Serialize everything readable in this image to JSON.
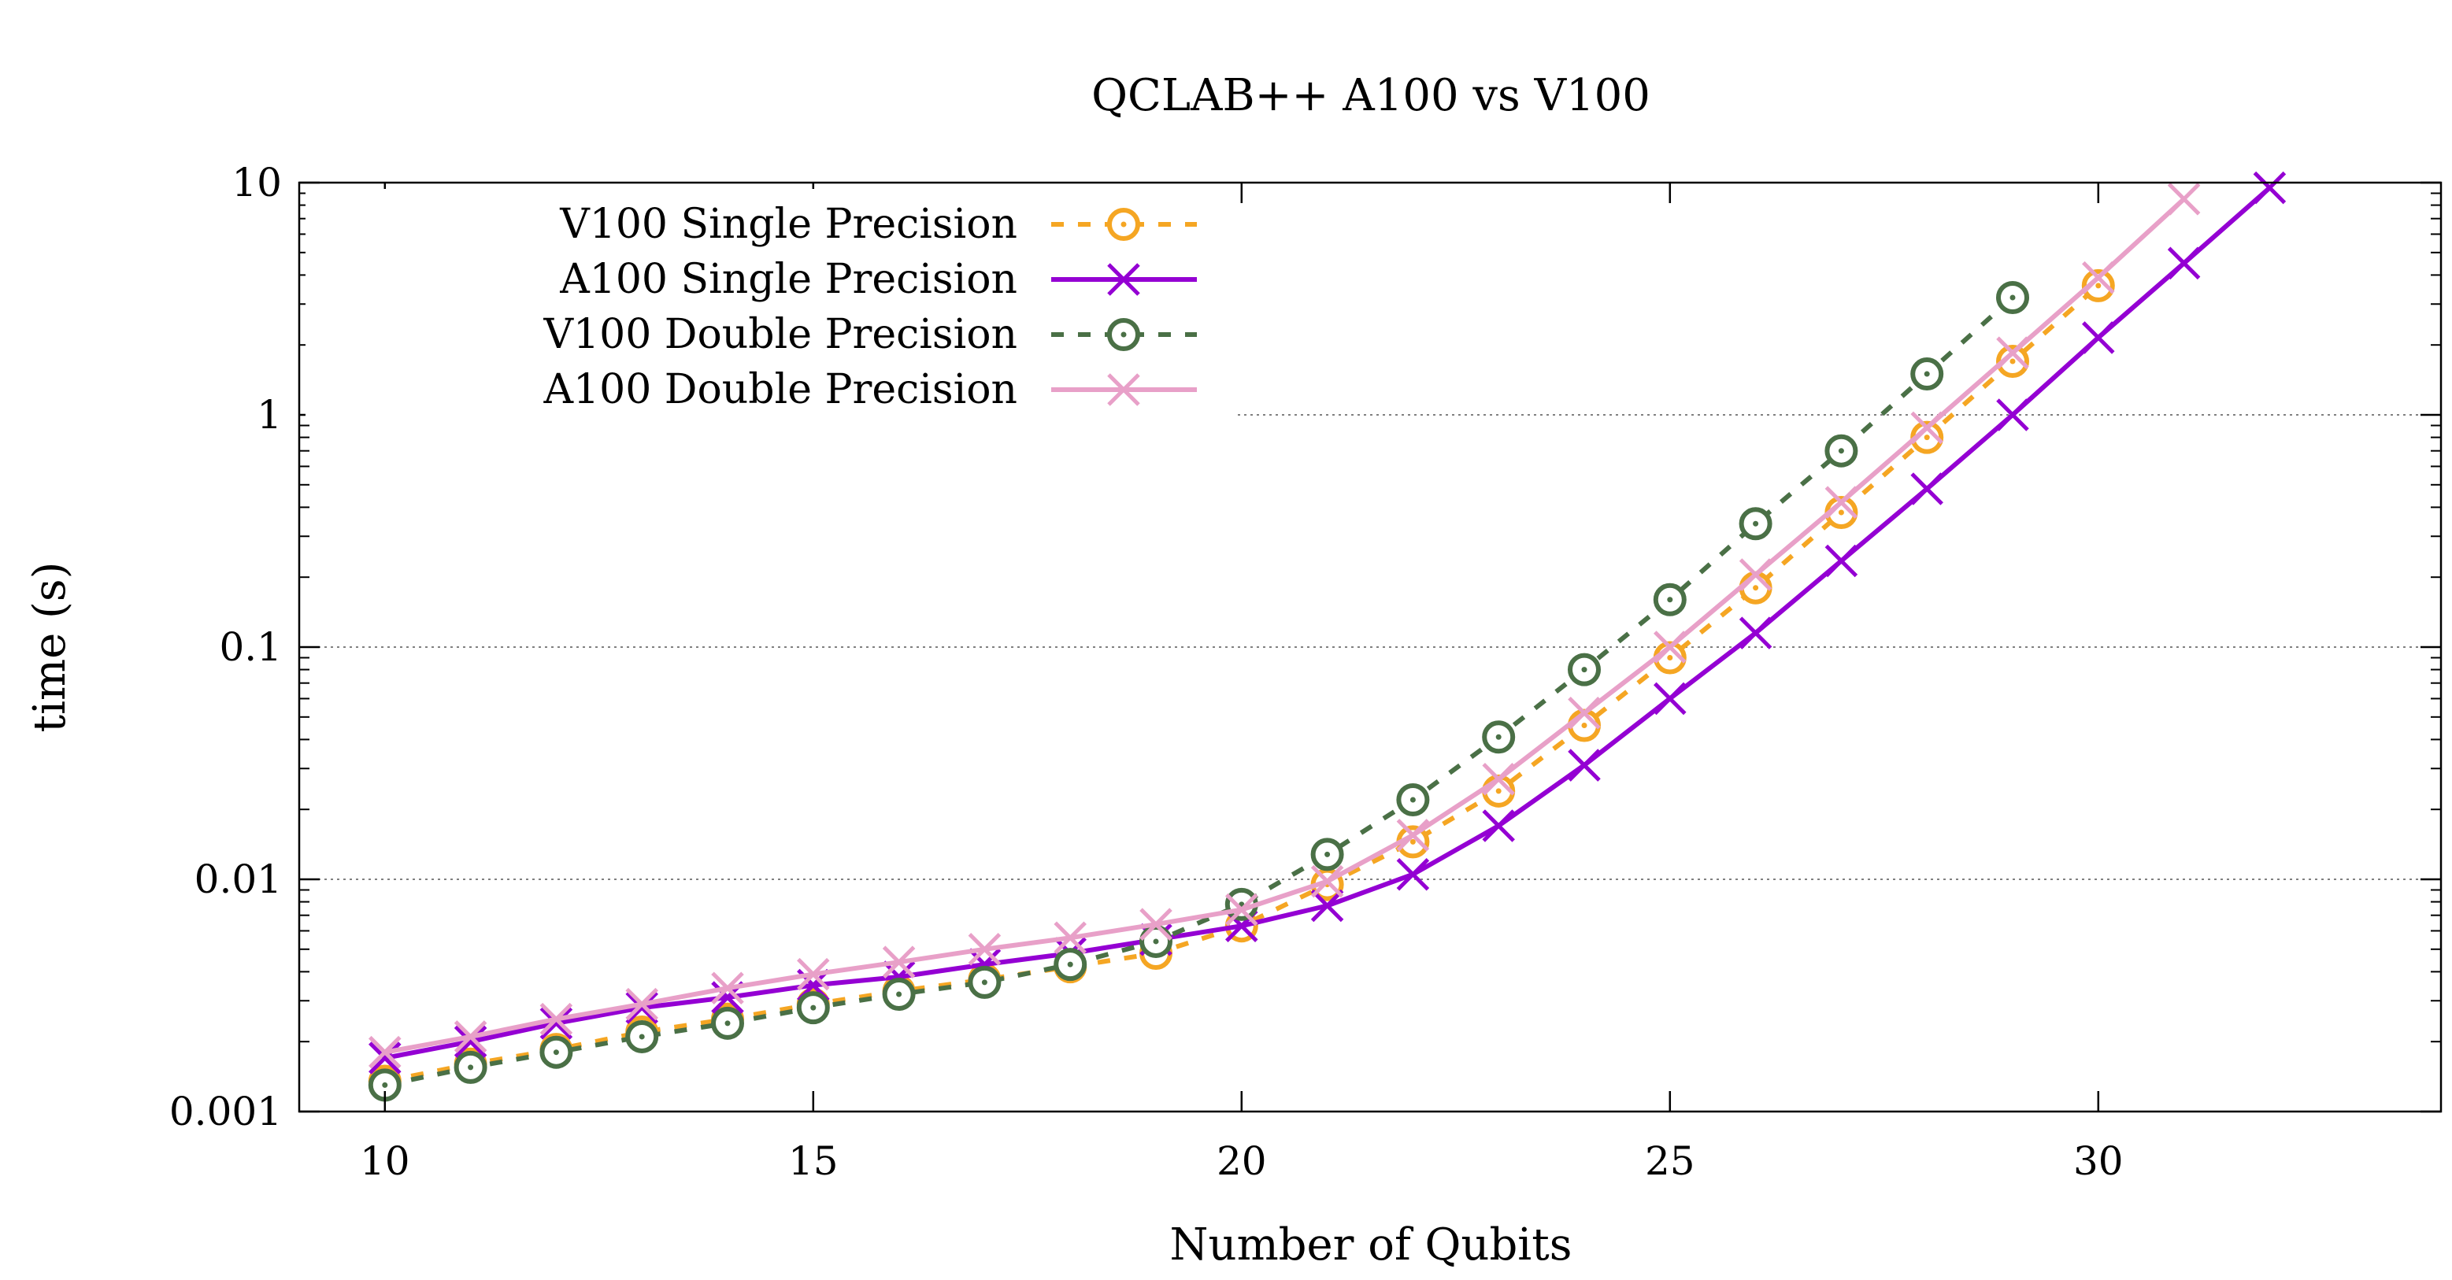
{
  "chart_data": {
    "type": "line",
    "title": "QCLAB++ A100 vs V100",
    "xlabel": "Number of Qubits",
    "ylabel": "time (s)",
    "xlim": [
      9,
      34
    ],
    "ylim": [
      0.001,
      10
    ],
    "yscale": "log",
    "xticks": [
      10,
      15,
      20,
      25,
      30
    ],
    "xtick_labels": [
      "10",
      "15",
      "20",
      "25",
      "30"
    ],
    "yticks": [
      0.001,
      0.01,
      0.1,
      1,
      10
    ],
    "ytick_labels": [
      "0.001",
      "0.01",
      "0.1",
      "1",
      "10"
    ],
    "grid": "horizontal dotted at 0.1 and 1",
    "legend_position": "top-left",
    "series": [
      {
        "name": "V100 Single Precision",
        "color": "#f5a623",
        "line": "dashed",
        "marker": "circle-dot",
        "x": [
          10,
          11,
          12,
          13,
          14,
          15,
          16,
          17,
          18,
          19,
          20,
          21,
          22,
          23,
          24,
          25,
          26,
          27,
          28,
          29,
          30
        ],
        "y": [
          0.00135,
          0.0016,
          0.00185,
          0.0022,
          0.0025,
          0.0029,
          0.0033,
          0.0037,
          0.0042,
          0.0048,
          0.0063,
          0.0095,
          0.0145,
          0.024,
          0.046,
          0.09,
          0.18,
          0.38,
          0.8,
          1.7,
          3.6
        ]
      },
      {
        "name": "A100 Single Precision",
        "color": "#9400d3",
        "line": "solid",
        "marker": "x",
        "x": [
          10,
          11,
          12,
          13,
          14,
          15,
          16,
          17,
          18,
          19,
          20,
          21,
          22,
          23,
          24,
          25,
          26,
          27,
          28,
          29,
          30,
          31,
          32
        ],
        "y": [
          0.0017,
          0.002,
          0.0024,
          0.0028,
          0.0031,
          0.0035,
          0.0038,
          0.0043,
          0.0048,
          0.0055,
          0.0063,
          0.0077,
          0.0105,
          0.017,
          0.031,
          0.06,
          0.115,
          0.235,
          0.48,
          1.0,
          2.15,
          4.5,
          9.5
        ]
      },
      {
        "name": "V100 Double Precision",
        "color": "#4a7046",
        "line": "dashed",
        "marker": "circle-dot",
        "x": [
          10,
          11,
          12,
          13,
          14,
          15,
          16,
          17,
          18,
          19,
          20,
          21,
          22,
          23,
          24,
          25,
          26,
          27,
          28,
          29
        ],
        "y": [
          0.0013,
          0.00155,
          0.0018,
          0.0021,
          0.0024,
          0.0028,
          0.0032,
          0.0036,
          0.0043,
          0.0054,
          0.0078,
          0.0128,
          0.022,
          0.041,
          0.08,
          0.16,
          0.34,
          0.7,
          1.5,
          3.2
        ]
      },
      {
        "name": "A100 Double Precision",
        "color": "#e8a0c8",
        "line": "solid",
        "marker": "x",
        "x": [
          10,
          11,
          12,
          13,
          14,
          15,
          16,
          17,
          18,
          19,
          20,
          21,
          22,
          23,
          24,
          25,
          26,
          27,
          28,
          29,
          30,
          31
        ],
        "y": [
          0.0018,
          0.0021,
          0.0025,
          0.0029,
          0.0034,
          0.0039,
          0.0044,
          0.005,
          0.0056,
          0.0064,
          0.0074,
          0.0098,
          0.0155,
          0.027,
          0.052,
          0.1,
          0.205,
          0.42,
          0.88,
          1.85,
          3.9,
          8.5
        ]
      }
    ]
  }
}
